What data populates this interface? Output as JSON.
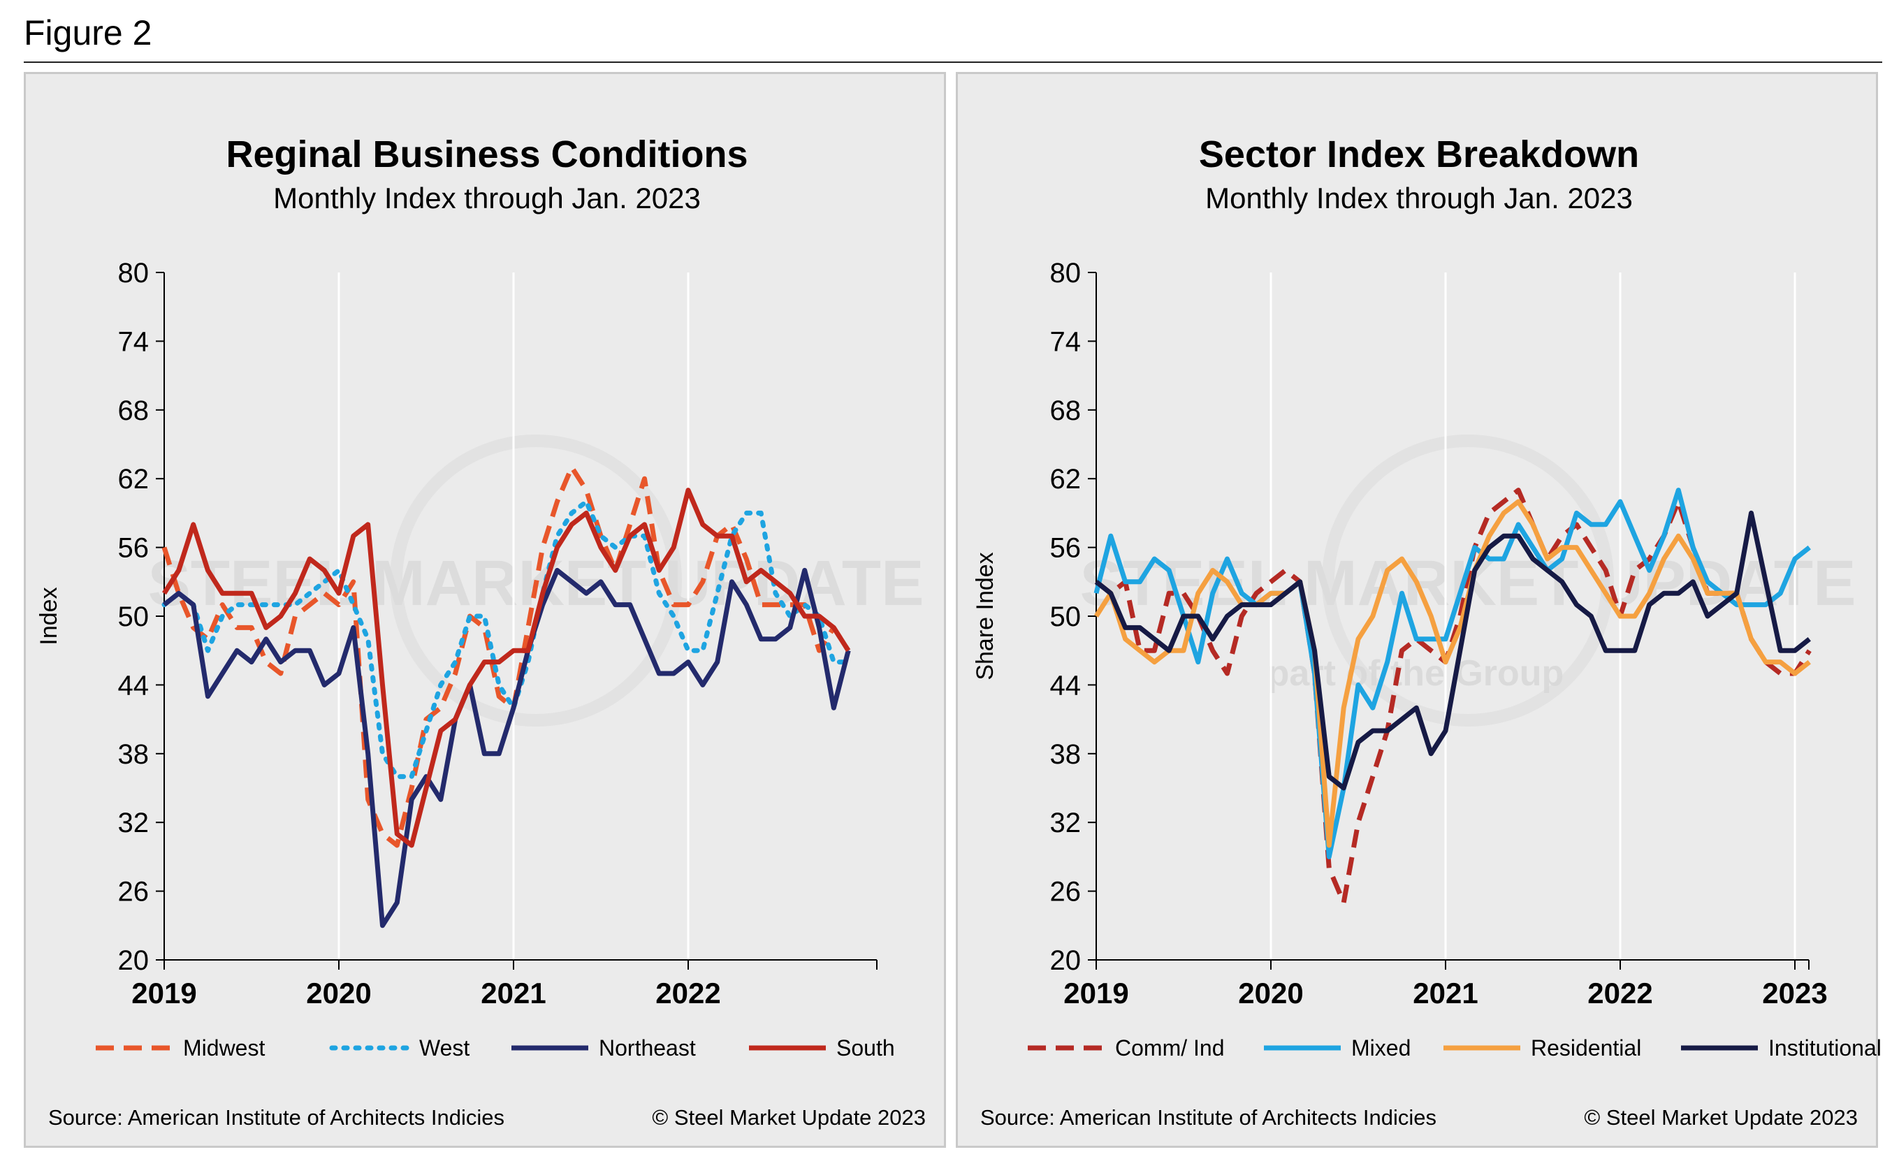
{
  "figure_label": "Figure 2",
  "chart_data": [
    {
      "type": "line",
      "title": "Reginal Business Conditions",
      "subtitle": "Monthly Index through Jan. 2023",
      "ylabel": "Index",
      "xlabel": "",
      "ylim": [
        20,
        80
      ],
      "yticks": [
        20,
        26,
        32,
        38,
        44,
        50,
        56,
        62,
        68,
        74,
        80
      ],
      "xlim": [
        2019,
        2023.08
      ],
      "xticks": [
        "2019",
        "2020",
        "2021",
        "2022"
      ],
      "grid": "vertical at year ticks",
      "source": "Source: American Institute of Architects Indicies",
      "copyright": "© Steel Market Update 2023",
      "watermark": "STEEL MARKET UPDATE",
      "series": [
        {
          "name": "Midwest",
          "color": "#e8562a",
          "style": "dashed",
          "values": [
            56,
            52,
            49,
            48,
            51,
            49,
            49,
            46,
            45,
            50,
            51,
            52,
            51,
            53,
            34,
            31,
            30,
            35,
            41,
            42,
            45,
            50,
            49,
            43,
            42,
            49,
            56,
            60,
            63,
            61,
            57,
            54,
            58,
            62,
            54,
            51,
            51,
            53,
            57,
            58,
            55,
            51,
            51,
            51,
            51,
            47,
            49,
            47
          ]
        },
        {
          "name": "West",
          "color": "#1ea4e1",
          "style": "dotted",
          "values": [
            51,
            52,
            51,
            47,
            50,
            51,
            51,
            51,
            51,
            51,
            52,
            53,
            54,
            51,
            48,
            38,
            36,
            36,
            40,
            44,
            46,
            50,
            50,
            44,
            42,
            46,
            52,
            57,
            59,
            60,
            57,
            56,
            57,
            57,
            52,
            50,
            47,
            47,
            52,
            57,
            59,
            59,
            52,
            50,
            51,
            50,
            46,
            46
          ]
        },
        {
          "name": "Northeast",
          "color": "#232a6c",
          "style": "solid",
          "values": [
            51,
            52,
            51,
            43,
            45,
            47,
            46,
            48,
            46,
            47,
            47,
            44,
            45,
            49,
            38,
            23,
            25,
            34,
            36,
            34,
            41,
            44,
            38,
            38,
            42,
            47,
            51,
            54,
            53,
            52,
            53,
            51,
            51,
            48,
            45,
            45,
            46,
            44,
            46,
            53,
            51,
            48,
            48,
            49,
            54,
            49,
            42,
            47
          ]
        },
        {
          "name": "South",
          "color": "#c0281c",
          "style": "solid",
          "values": [
            52,
            54,
            58,
            54,
            52,
            52,
            52,
            49,
            50,
            52,
            55,
            54,
            52,
            57,
            58,
            44,
            31,
            30,
            35,
            40,
            41,
            44,
            46,
            46,
            47,
            47,
            52,
            56,
            58,
            59,
            56,
            54,
            57,
            58,
            54,
            56,
            61,
            58,
            57,
            57,
            53,
            54,
            53,
            52,
            50,
            50,
            49,
            47
          ]
        }
      ]
    },
    {
      "type": "line",
      "title": "Sector Index Breakdown",
      "subtitle": "Monthly Index through Jan. 2023",
      "ylabel": "Share Index",
      "xlabel": "",
      "ylim": [
        20,
        80
      ],
      "yticks": [
        20,
        26,
        32,
        38,
        44,
        50,
        56,
        62,
        68,
        74,
        80
      ],
      "xlim": [
        2019,
        2023.08
      ],
      "xticks": [
        "2019",
        "2020",
        "2021",
        "2022",
        "2023"
      ],
      "grid": "vertical at year ticks",
      "source": "Source: American Institute of Architects Indicies",
      "copyright": "© Steel Market Update 2023",
      "watermark": "STEEL MARKET UPDATE",
      "watermark2": "part of the Group",
      "series": [
        {
          "name": "Comm/ Ind",
          "color": "#b52a24",
          "style": "dashed",
          "values": [
            53,
            52,
            53,
            47,
            47,
            52,
            52,
            50,
            47,
            45,
            50,
            52,
            53,
            54,
            53,
            45,
            28,
            25,
            32,
            36,
            40,
            47,
            48,
            47,
            46,
            50,
            56,
            59,
            60,
            61,
            58,
            55,
            57,
            58,
            56,
            54,
            50,
            54,
            55,
            57,
            60,
            56,
            52,
            52,
            52,
            48,
            46,
            45,
            45,
            47
          ]
        },
        {
          "name": "Mixed",
          "color": "#1ea4e1",
          "style": "solid",
          "values": [
            52,
            57,
            53,
            53,
            55,
            54,
            50,
            46,
            52,
            55,
            52,
            51,
            52,
            52,
            53,
            45,
            29,
            35,
            44,
            42,
            46,
            52,
            48,
            48,
            48,
            52,
            56,
            55,
            55,
            58,
            56,
            54,
            55,
            59,
            58,
            58,
            60,
            57,
            54,
            57,
            61,
            56,
            53,
            52,
            51,
            51,
            51,
            52,
            55,
            56
          ]
        },
        {
          "name": "Residential",
          "color": "#f5a040",
          "style": "solid",
          "values": [
            50,
            52,
            48,
            47,
            46,
            47,
            47,
            52,
            54,
            53,
            51,
            51,
            52,
            52,
            53,
            47,
            30,
            42,
            48,
            50,
            54,
            55,
            53,
            50,
            46,
            49,
            54,
            57,
            59,
            60,
            58,
            55,
            56,
            56,
            54,
            52,
            50,
            50,
            52,
            55,
            57,
            55,
            52,
            52,
            52,
            48,
            46,
            46,
            45,
            46
          ]
        },
        {
          "name": "Institutional",
          "color": "#161a45",
          "style": "solid",
          "values": [
            53,
            52,
            49,
            49,
            48,
            47,
            50,
            50,
            48,
            50,
            51,
            51,
            51,
            52,
            53,
            47,
            36,
            35,
            39,
            40,
            40,
            41,
            42,
            38,
            40,
            47,
            54,
            56,
            57,
            57,
            55,
            54,
            53,
            51,
            50,
            47,
            47,
            47,
            51,
            52,
            52,
            53,
            50,
            51,
            52,
            59,
            53,
            47,
            47,
            48
          ]
        }
      ]
    }
  ]
}
